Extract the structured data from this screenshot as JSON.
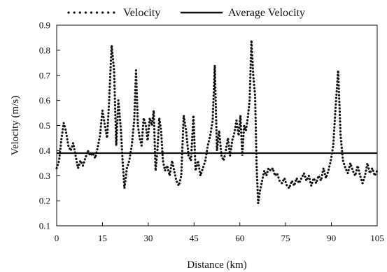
{
  "chart_data": {
    "type": "line",
    "title": "",
    "xlabel": "Distance (km)",
    "ylabel": "Velocity (m/s)",
    "xlim": [
      0,
      105
    ],
    "ylim": [
      0.1,
      0.9
    ],
    "xticks": [
      0,
      15,
      30,
      45,
      60,
      75,
      90,
      105
    ],
    "yticks": [
      0.1,
      0.2,
      0.3,
      0.4,
      0.5,
      0.6,
      0.7,
      0.8,
      0.9
    ],
    "grid": false,
    "legend_position": "top",
    "series": [
      {
        "name": "Velocity",
        "style": "dotted",
        "color": "#111111",
        "points": [
          [
            0,
            0.33
          ],
          [
            0.8,
            0.36
          ],
          [
            1.5,
            0.44
          ],
          [
            2.3,
            0.51
          ],
          [
            3.0,
            0.48
          ],
          [
            3.8,
            0.42
          ],
          [
            4.6,
            0.4
          ],
          [
            5.4,
            0.43
          ],
          [
            6.2,
            0.38
          ],
          [
            7.0,
            0.33
          ],
          [
            7.8,
            0.36
          ],
          [
            8.6,
            0.34
          ],
          [
            9.4,
            0.37
          ],
          [
            10.2,
            0.4
          ],
          [
            11.0,
            0.38
          ],
          [
            11.8,
            0.39
          ],
          [
            12.6,
            0.37
          ],
          [
            13.4,
            0.41
          ],
          [
            14.2,
            0.46
          ],
          [
            15.0,
            0.56
          ],
          [
            15.8,
            0.5
          ],
          [
            16.5,
            0.45
          ],
          [
            17.2,
            0.6
          ],
          [
            18.0,
            0.82
          ],
          [
            18.8,
            0.72
          ],
          [
            19.5,
            0.42
          ],
          [
            20.2,
            0.6
          ],
          [
            21.0,
            0.49
          ],
          [
            21.6,
            0.36
          ],
          [
            22.2,
            0.25
          ],
          [
            23.0,
            0.33
          ],
          [
            23.8,
            0.36
          ],
          [
            24.6,
            0.42
          ],
          [
            25.4,
            0.52
          ],
          [
            26.0,
            0.72
          ],
          [
            26.6,
            0.5
          ],
          [
            27.2,
            0.45
          ],
          [
            27.8,
            0.42
          ],
          [
            28.5,
            0.53
          ],
          [
            29.2,
            0.5
          ],
          [
            29.8,
            0.44
          ],
          [
            30.5,
            0.53
          ],
          [
            31.2,
            0.5
          ],
          [
            31.8,
            0.56
          ],
          [
            32.4,
            0.32
          ],
          [
            33.0,
            0.4
          ],
          [
            33.6,
            0.53
          ],
          [
            34.2,
            0.48
          ],
          [
            34.8,
            0.36
          ],
          [
            35.5,
            0.32
          ],
          [
            36.2,
            0.34
          ],
          [
            37.0,
            0.3
          ],
          [
            37.8,
            0.36
          ],
          [
            38.5,
            0.32
          ],
          [
            39.2,
            0.28
          ],
          [
            40.0,
            0.26
          ],
          [
            40.8,
            0.3
          ],
          [
            41.6,
            0.54
          ],
          [
            42.4,
            0.48
          ],
          [
            43.2,
            0.38
          ],
          [
            44.0,
            0.36
          ],
          [
            44.8,
            0.54
          ],
          [
            45.5,
            0.32
          ],
          [
            46.3,
            0.36
          ],
          [
            47.1,
            0.3
          ],
          [
            47.9,
            0.33
          ],
          [
            48.7,
            0.36
          ],
          [
            49.5,
            0.42
          ],
          [
            50.3,
            0.46
          ],
          [
            51.1,
            0.52
          ],
          [
            51.8,
            0.74
          ],
          [
            52.5,
            0.4
          ],
          [
            53.2,
            0.48
          ],
          [
            54.0,
            0.38
          ],
          [
            54.7,
            0.36
          ],
          [
            55.4,
            0.4
          ],
          [
            56.1,
            0.45
          ],
          [
            56.8,
            0.38
          ],
          [
            57.5,
            0.44
          ],
          [
            58.2,
            0.47
          ],
          [
            58.9,
            0.52
          ],
          [
            59.6,
            0.46
          ],
          [
            60.2,
            0.54
          ],
          [
            60.8,
            0.38
          ],
          [
            61.4,
            0.5
          ],
          [
            62.0,
            0.48
          ],
          [
            62.6,
            0.53
          ],
          [
            63.2,
            0.6
          ],
          [
            63.8,
            0.84
          ],
          [
            64.4,
            0.7
          ],
          [
            65.0,
            0.62
          ],
          [
            65.5,
            0.34
          ],
          [
            66.0,
            0.19
          ],
          [
            66.6,
            0.24
          ],
          [
            67.3,
            0.28
          ],
          [
            68.0,
            0.32
          ],
          [
            68.7,
            0.3
          ],
          [
            69.4,
            0.33
          ],
          [
            70.1,
            0.32
          ],
          [
            70.8,
            0.33
          ],
          [
            71.5,
            0.3
          ],
          [
            72.2,
            0.31
          ],
          [
            73.0,
            0.28
          ],
          [
            73.8,
            0.27
          ],
          [
            74.6,
            0.29
          ],
          [
            75.4,
            0.26
          ],
          [
            76.2,
            0.25
          ],
          [
            77.0,
            0.28
          ],
          [
            77.8,
            0.26
          ],
          [
            78.6,
            0.29
          ],
          [
            79.4,
            0.27
          ],
          [
            80.2,
            0.29
          ],
          [
            81.0,
            0.31
          ],
          [
            81.8,
            0.28
          ],
          [
            82.6,
            0.3
          ],
          [
            83.4,
            0.26
          ],
          [
            84.2,
            0.29
          ],
          [
            85.0,
            0.27
          ],
          [
            85.8,
            0.3
          ],
          [
            86.6,
            0.28
          ],
          [
            87.4,
            0.33
          ],
          [
            88.2,
            0.29
          ],
          [
            89.0,
            0.32
          ],
          [
            89.8,
            0.36
          ],
          [
            90.6,
            0.42
          ],
          [
            91.4,
            0.58
          ],
          [
            92.2,
            0.72
          ],
          [
            93.0,
            0.46
          ],
          [
            93.8,
            0.36
          ],
          [
            94.6,
            0.33
          ],
          [
            95.4,
            0.31
          ],
          [
            96.2,
            0.35
          ],
          [
            97.0,
            0.32
          ],
          [
            97.8,
            0.3
          ],
          [
            98.6,
            0.34
          ],
          [
            99.4,
            0.3
          ],
          [
            100.2,
            0.27
          ],
          [
            101.0,
            0.3
          ],
          [
            101.8,
            0.35
          ],
          [
            102.6,
            0.31
          ],
          [
            103.4,
            0.33
          ],
          [
            104.2,
            0.3
          ],
          [
            105.0,
            0.32
          ]
        ]
      },
      {
        "name": "Average Velocity",
        "style": "solid",
        "color": "#111111",
        "points": [
          [
            0,
            0.39
          ],
          [
            105,
            0.39
          ]
        ]
      }
    ]
  }
}
